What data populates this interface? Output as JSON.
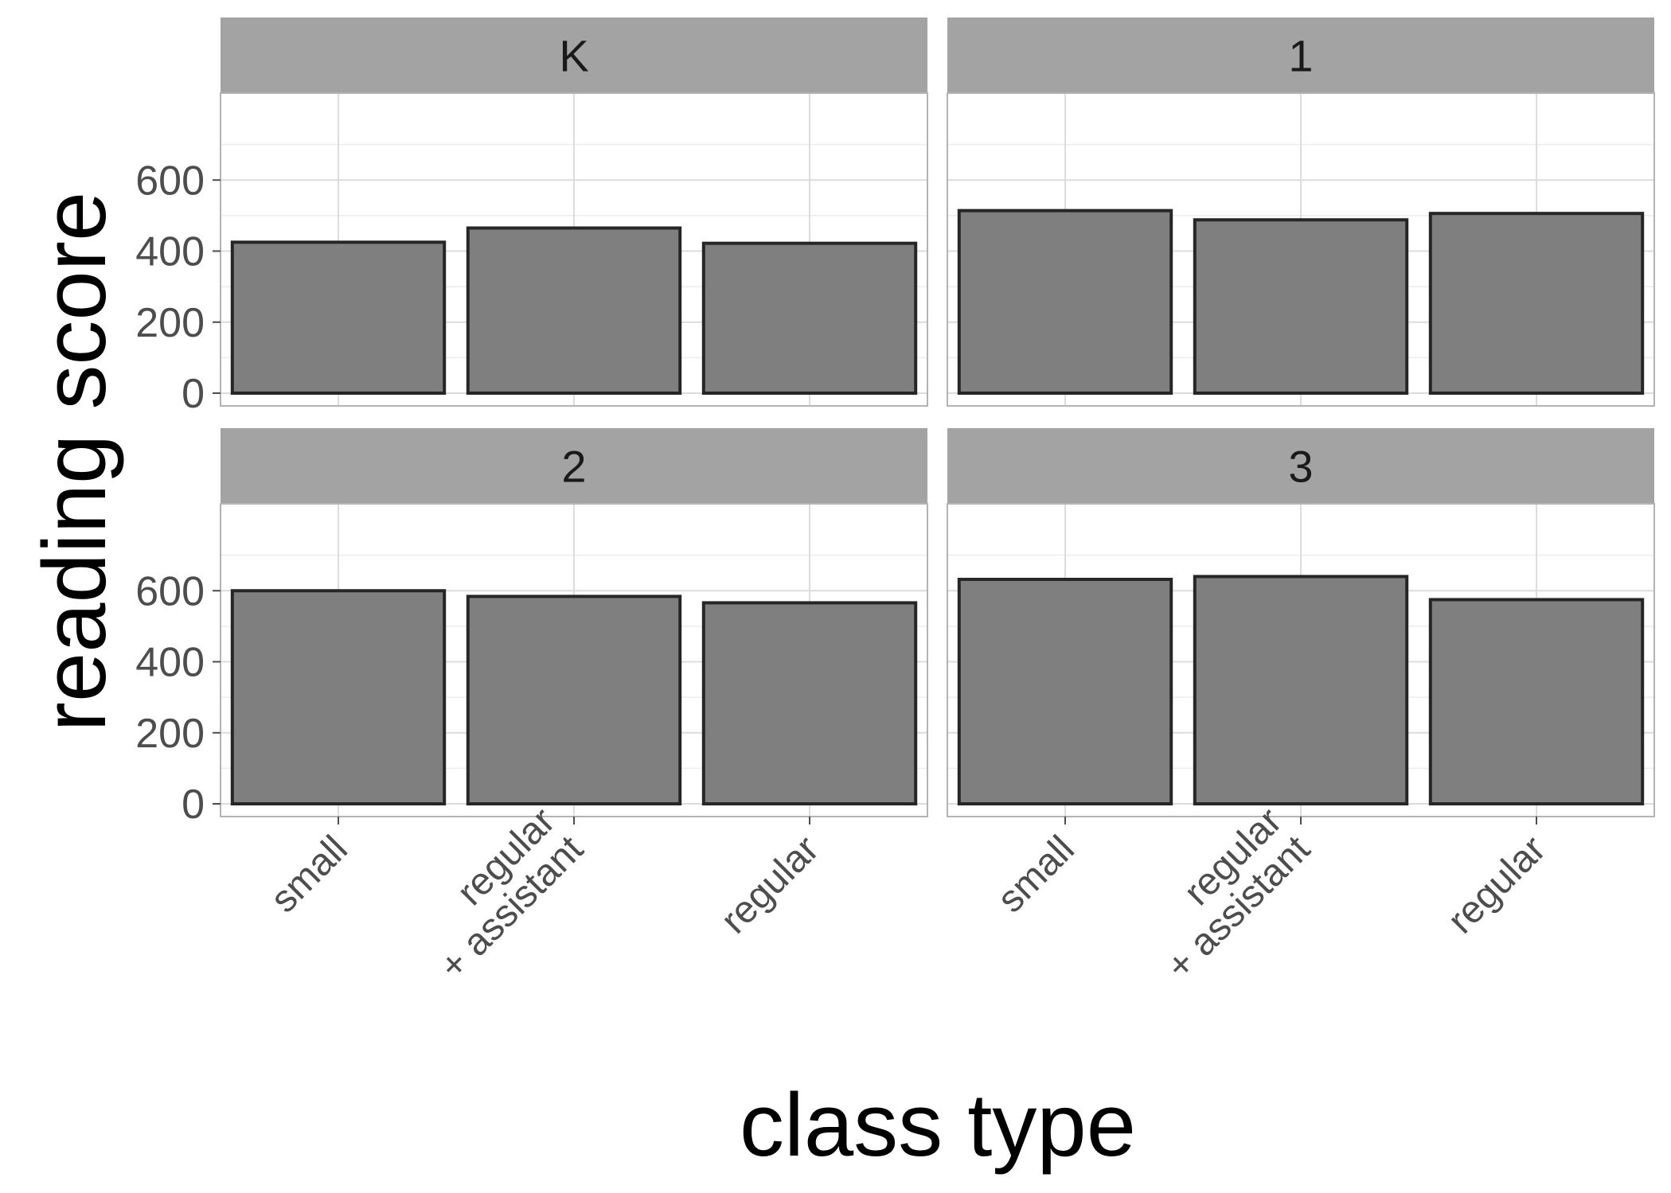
{
  "chart_data": {
    "type": "bar",
    "facet_by": "grade",
    "xlabel": "class type",
    "ylabel": "reading score",
    "ylim": [
      0,
      800
    ],
    "yticks": [
      0,
      200,
      400,
      600
    ],
    "categories": [
      "small",
      "regular\n+ assistant",
      "regular"
    ],
    "panels": [
      {
        "label": "K",
        "values": [
          425,
          465,
          422
        ]
      },
      {
        "label": "1",
        "values": [
          514,
          488,
          506
        ]
      },
      {
        "label": "2",
        "values": [
          600,
          584,
          566
        ]
      },
      {
        "label": "3",
        "values": [
          632,
          640,
          575
        ]
      }
    ]
  }
}
